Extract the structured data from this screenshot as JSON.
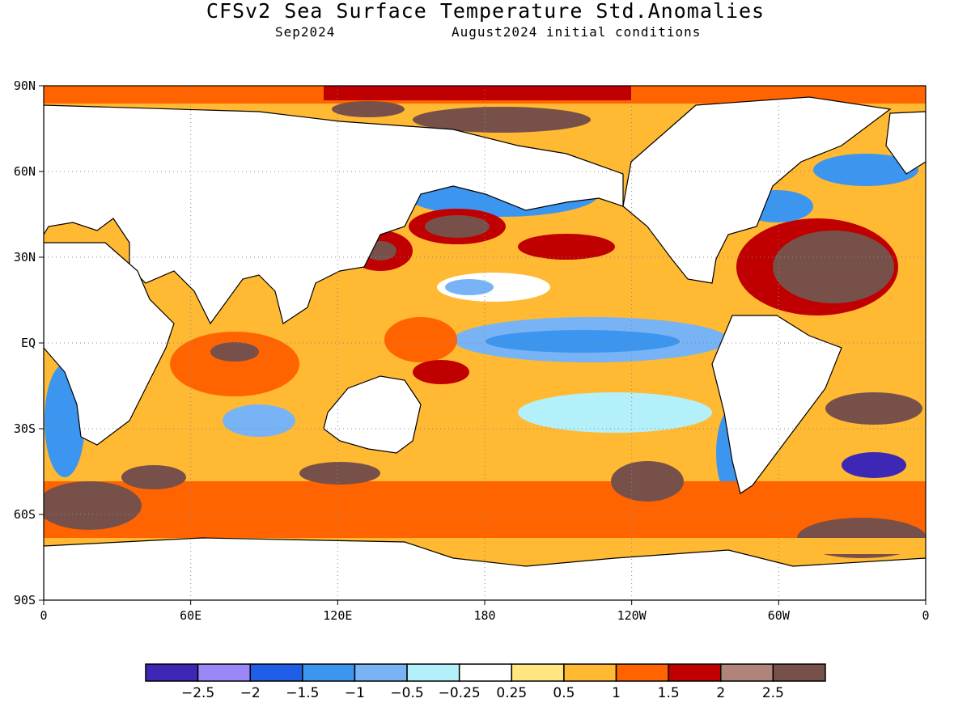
{
  "header": {
    "title": "CFSv2 Sea Surface Temperature Std.Anomalies",
    "subtitle_left": "Sep2024",
    "subtitle_right": "August2024 initial conditions"
  },
  "map": {
    "projection": "cylindrical",
    "lon_ticks": [
      "0",
      "60E",
      "120E",
      "180",
      "120W",
      "60W",
      "0"
    ],
    "lat_ticks": [
      "90N",
      "60N",
      "30N",
      "EQ",
      "30S",
      "60S",
      "90S"
    ],
    "land_color": "#ffffff",
    "gridlines": true
  },
  "colorbar": {
    "colors": [
      "#3c28b4",
      "#9b87f5",
      "#1f5ee6",
      "#3c96f0",
      "#78b4f5",
      "#b4f0fa",
      "#ffffff",
      "#ffe67f",
      "#ffb932",
      "#ff6400",
      "#c00000",
      "#b08478",
      "#78504a"
    ],
    "labels": [
      "−2.5",
      "−2",
      "−1.5",
      "−1",
      "−0.5",
      "−0.25",
      "0.25",
      "0.5",
      "1",
      "1.5",
      "2",
      "2.5"
    ]
  }
}
